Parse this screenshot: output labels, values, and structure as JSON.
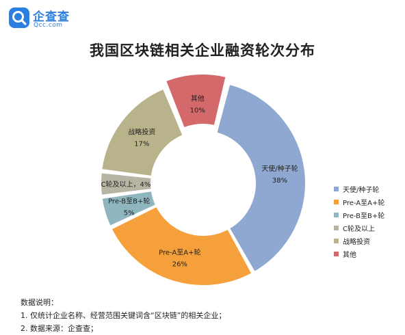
{
  "brand": {
    "name": "企查查",
    "domain": "Qcc.com"
  },
  "title": "我国区块链相关企业融资轮次分布",
  "chart_data": {
    "type": "pie",
    "title": "我国区块链相关企业融资轮次分布",
    "donut": true,
    "legend_position": "right",
    "categories": [
      "天使/种子轮",
      "Pre-A至A+轮",
      "Pre-B至B+轮",
      "C轮及以上",
      "战略投资",
      "其他"
    ],
    "values": [
      38,
      26,
      5,
      4,
      17,
      10
    ],
    "value_labels": [
      "38%",
      "26%",
      "5%",
      "4%",
      "17%",
      "10%"
    ],
    "colors": [
      "#8ea8d1",
      "#f5a03a",
      "#8fb5bf",
      "#b8b4a4",
      "#b9b38b",
      "#d4696b"
    ],
    "start_angle_deg": 14,
    "exploded": [
      "其他"
    ]
  },
  "notes": {
    "heading": "数据说明：",
    "items": [
      "1. 仅统计企业名称、经营范围关键词含“区块链”的相关企业；",
      "2. 数据来源：企查查；"
    ]
  }
}
